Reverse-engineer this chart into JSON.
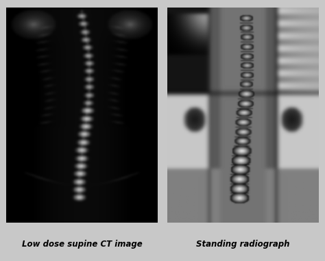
{
  "figsize": [
    4.74,
    3.81
  ],
  "dpi": 100,
  "background_color": "#c8c8c8",
  "left_label": "Low dose supine CT image",
  "right_label": "Standing radiograph",
  "label_fontsize": 8.5,
  "label_style": "italic",
  "label_weight": "bold"
}
